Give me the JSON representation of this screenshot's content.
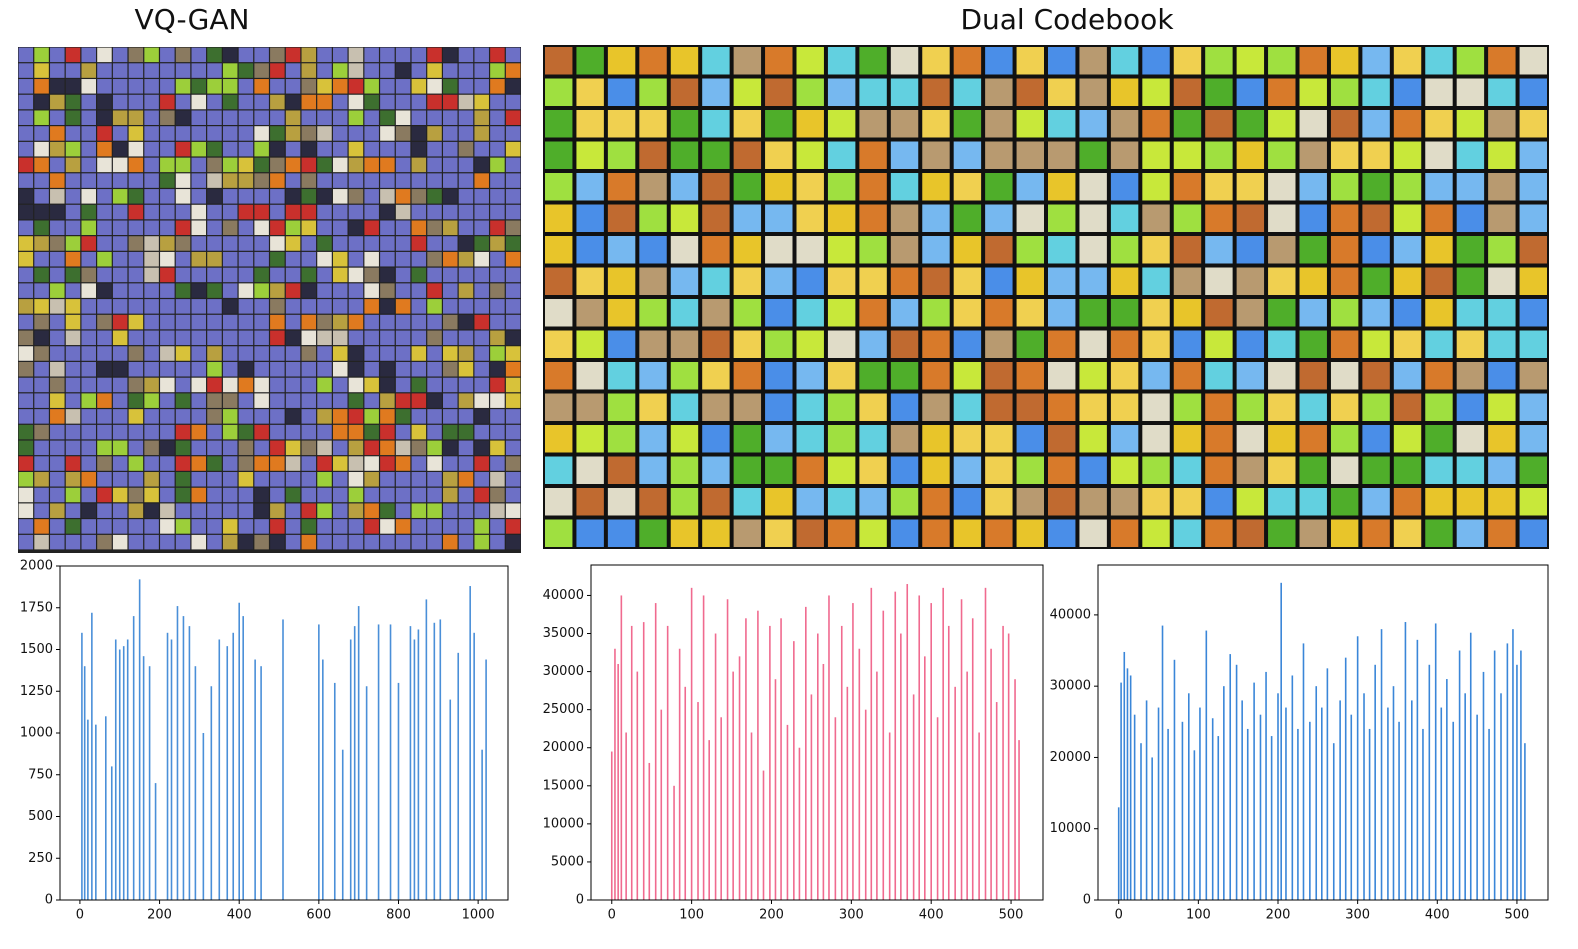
{
  "panels": [
    {
      "title": "VQ-GAN"
    },
    {
      "title": "Dual Codebook"
    }
  ],
  "chart_data": [
    {
      "type": "bar",
      "color": "#4a8fd8",
      "x": [
        5,
        12,
        20,
        30,
        40,
        65,
        80,
        90,
        100,
        110,
        120,
        135,
        150,
        160,
        175,
        190,
        220,
        230,
        245,
        260,
        275,
        290,
        310,
        330,
        350,
        370,
        385,
        400,
        410,
        440,
        455,
        510,
        600,
        610,
        640,
        660,
        680,
        690,
        700,
        720,
        750,
        780,
        800,
        830,
        840,
        850,
        870,
        890,
        905,
        930,
        950,
        980,
        990,
        1010,
        1020
      ],
      "values": [
        1600,
        1400,
        1080,
        1720,
        1050,
        1100,
        800,
        1560,
        1500,
        1520,
        1560,
        1700,
        1920,
        1460,
        1400,
        700,
        1600,
        1560,
        1760,
        1700,
        1640,
        1400,
        1000,
        1280,
        1560,
        1520,
        1600,
        1780,
        1700,
        1440,
        1400,
        1680,
        1650,
        1440,
        1300,
        900,
        1560,
        1640,
        1760,
        1280,
        1650,
        1650,
        1300,
        1640,
        1560,
        1620,
        1800,
        1660,
        1680,
        1200,
        1480,
        1880,
        1600,
        900,
        1440
      ],
      "xlim": [
        -50,
        1075
      ],
      "xticks": [
        0,
        200,
        400,
        600,
        800,
        1000
      ],
      "ylim": [
        0,
        2000
      ],
      "yticks": [
        0,
        250,
        500,
        750,
        1000,
        1250,
        1500,
        1750,
        2000
      ]
    },
    {
      "type": "bar",
      "color": "#f06a8f",
      "x": [
        0,
        4,
        8,
        12,
        18,
        25,
        32,
        40,
        47,
        55,
        62,
        70,
        78,
        85,
        92,
        100,
        108,
        115,
        122,
        130,
        137,
        145,
        152,
        160,
        168,
        175,
        183,
        190,
        198,
        205,
        212,
        220,
        228,
        235,
        243,
        250,
        258,
        265,
        272,
        280,
        288,
        295,
        302,
        310,
        318,
        325,
        332,
        340,
        348,
        355,
        362,
        370,
        378,
        385,
        392,
        400,
        408,
        415,
        422,
        430,
        438,
        445,
        452,
        460,
        468,
        475,
        482,
        490,
        497,
        505,
        510
      ],
      "values": [
        19500,
        33000,
        31000,
        40000,
        22000,
        36000,
        30000,
        36500,
        18000,
        39000,
        25000,
        36000,
        15000,
        33000,
        28000,
        41000,
        26000,
        40000,
        21000,
        35000,
        24000,
        39500,
        30000,
        32000,
        37000,
        22000,
        38000,
        17000,
        36000,
        29000,
        37000,
        23000,
        34000,
        20000,
        38500,
        27000,
        35000,
        31000,
        40000,
        24000,
        36000,
        28000,
        39000,
        33000,
        25000,
        41000,
        30000,
        38000,
        22000,
        40500,
        35000,
        41500,
        27000,
        40000,
        32000,
        39000,
        24000,
        41000,
        36000,
        28000,
        39500,
        30000,
        37000,
        22000,
        41000,
        33000,
        26000,
        36000,
        35000,
        29000,
        21000
      ],
      "xlim": [
        -26,
        540
      ],
      "xticks": [
        0,
        100,
        200,
        300,
        400,
        500
      ],
      "ylim": [
        0,
        44000
      ],
      "yticks": [
        0,
        5000,
        10000,
        15000,
        20000,
        25000,
        30000,
        35000,
        40000
      ]
    },
    {
      "type": "bar",
      "color": "#3a86d8",
      "x": [
        0,
        3,
        7,
        11,
        15,
        20,
        28,
        35,
        42,
        50,
        55,
        62,
        70,
        80,
        88,
        95,
        102,
        110,
        118,
        125,
        132,
        140,
        148,
        155,
        162,
        170,
        178,
        185,
        192,
        200,
        204,
        210,
        218,
        225,
        232,
        240,
        248,
        255,
        262,
        270,
        278,
        285,
        292,
        300,
        308,
        315,
        322,
        330,
        338,
        345,
        352,
        360,
        368,
        375,
        382,
        390,
        398,
        405,
        412,
        420,
        428,
        435,
        442,
        450,
        458,
        465,
        472,
        480,
        488,
        495,
        500,
        505,
        510
      ],
      "values": [
        13000,
        30500,
        34800,
        32500,
        31500,
        26000,
        22000,
        28000,
        20000,
        27000,
        38500,
        24000,
        33700,
        25000,
        29000,
        21000,
        27000,
        37800,
        25500,
        23000,
        30000,
        34500,
        33000,
        28000,
        24000,
        30500,
        26000,
        32000,
        23000,
        29000,
        44500,
        27000,
        31500,
        24000,
        36000,
        25000,
        30000,
        27000,
        32500,
        22000,
        28000,
        34000,
        26000,
        37000,
        29000,
        24000,
        33000,
        38000,
        27000,
        30000,
        25000,
        39000,
        28000,
        36500,
        24000,
        33000,
        38800,
        27000,
        31000,
        25000,
        35000,
        29000,
        37500,
        26000,
        32000,
        24000,
        35000,
        29000,
        36000,
        38000,
        33000,
        35000,
        22000
      ],
      "xlim": [
        -26,
        539
      ],
      "xticks": [
        0,
        100,
        200,
        300,
        400,
        500
      ],
      "ylim": [
        0,
        47000
      ],
      "yticks": [
        0,
        10000,
        20000,
        30000,
        40000
      ]
    }
  ]
}
